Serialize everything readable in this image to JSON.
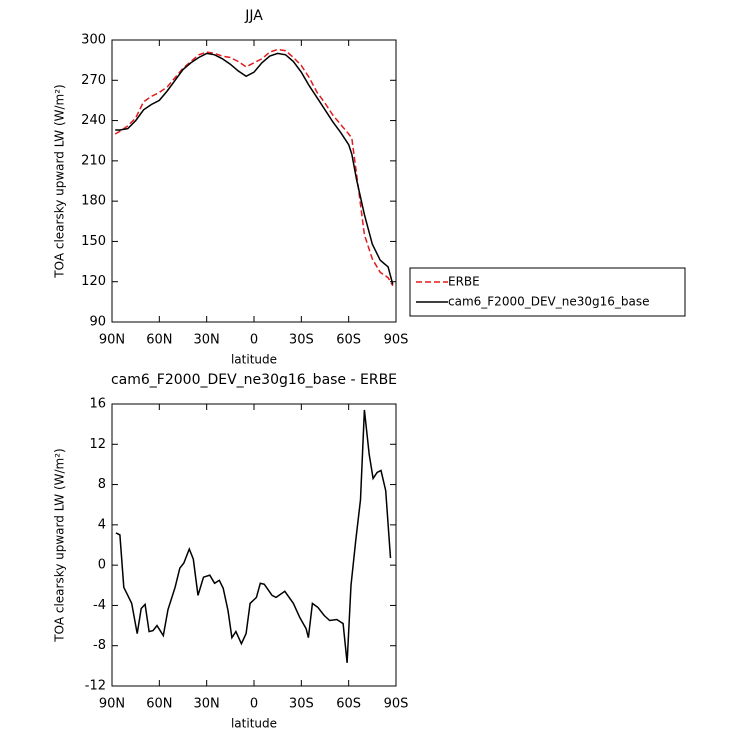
{
  "chart_data": [
    {
      "type": "line",
      "title": "JJA",
      "xlabel": "latitude",
      "ylabel": "TOA clearsky upward LW (W/m²)",
      "x": [
        88,
        85,
        80,
        75,
        70,
        65,
        60,
        55,
        50,
        45,
        40,
        35,
        30,
        25,
        20,
        15,
        10,
        5,
        0,
        -5,
        -10,
        -15,
        -20,
        -25,
        -30,
        -35,
        -40,
        -45,
        -50,
        -55,
        -60,
        -62,
        -65,
        -70,
        -75,
        -80,
        -85,
        -88
      ],
      "series": [
        {
          "name": "ERBE",
          "color": "#e41a1c",
          "dashed": true,
          "values": [
            230,
            232,
            236,
            242,
            254,
            258,
            261,
            265,
            272,
            279,
            284,
            289,
            291,
            290,
            288,
            287,
            284,
            280,
            283,
            286,
            291,
            293,
            292,
            287,
            281,
            272,
            261,
            253,
            244,
            237,
            230,
            227,
            200,
            155,
            137,
            127,
            123,
            117
          ]
        },
        {
          "name": "cam6_F2000_DEV_ne30g16_base",
          "color": "#000000",
          "dashed": false,
          "values": [
            233,
            233,
            234,
            240,
            248,
            252,
            255,
            262,
            270,
            278,
            283,
            287,
            290,
            289,
            286,
            282,
            277,
            273,
            276,
            283,
            288,
            290,
            289,
            284,
            276,
            266,
            257,
            248,
            239,
            231,
            222,
            215,
            196,
            170,
            148,
            136,
            131,
            118
          ]
        }
      ],
      "xlim": [
        90,
        -90
      ],
      "xticks": [
        {
          "value": 90,
          "label": "90N"
        },
        {
          "value": 60,
          "label": "60N"
        },
        {
          "value": 30,
          "label": "30N"
        },
        0,
        {
          "value": -30,
          "label": "30S"
        },
        {
          "value": -60,
          "label": "60S"
        },
        {
          "value": -90,
          "label": "90S"
        }
      ],
      "ylim": [
        90,
        300
      ],
      "yticks": [
        90,
        120,
        150,
        180,
        210,
        240,
        270,
        300
      ],
      "legend": "right"
    },
    {
      "type": "line",
      "title": "cam6_F2000_DEV_ne30g16_base - ERBE",
      "xlabel": "latitude",
      "ylabel": "TOA clearsky upward LW (W/m²)",
      "x": [
        87.5,
        85,
        82.5,
        77.5,
        74,
        71.5,
        69,
        66.5,
        64,
        61.5,
        57.5,
        54.5,
        50,
        47,
        44.5,
        41,
        38.5,
        35.5,
        32,
        28,
        25,
        22,
        19.5,
        16.5,
        14,
        11.5,
        8,
        5,
        2.5,
        -1.5,
        -4,
        -6.5,
        -11.5,
        -14,
        -19.5,
        -25,
        -29,
        -33,
        -34.5,
        -37,
        -40.5,
        -44.5,
        -48,
        -52.5,
        -56.5,
        -59,
        -61.5,
        -64.5,
        -67.5,
        -70,
        -73,
        -75.5,
        -78,
        -80.5,
        -83.5,
        -86.5
      ],
      "series": [
        {
          "name": "cam6_F2000_DEV_ne30g16_base - ERBE",
          "color": "#000000",
          "dashed": false,
          "values": [
            3.2,
            3.0,
            -2.2,
            -3.8,
            -6.8,
            -4.3,
            -3.9,
            -6.6,
            -6.5,
            -6.0,
            -7.0,
            -4.4,
            -2.2,
            -0.3,
            0.2,
            1.6,
            0.6,
            -3.0,
            -1.2,
            -1.0,
            -1.8,
            -1.5,
            -2.3,
            -4.5,
            -7.2,
            -6.6,
            -7.8,
            -6.8,
            -3.8,
            -3.2,
            -1.8,
            -1.9,
            -3.0,
            -3.2,
            -2.6,
            -3.8,
            -5.2,
            -6.3,
            -7.2,
            -3.8,
            -4.2,
            -5.0,
            -5.5,
            -5.4,
            -5.8,
            -9.7,
            -2.0,
            2.5,
            6.5,
            15.4,
            11.0,
            8.6,
            9.2,
            9.4,
            7.4,
            0.7
          ]
        }
      ],
      "xlim": [
        90,
        -90
      ],
      "xticks": [
        {
          "value": 90,
          "label": "90N"
        },
        {
          "value": 60,
          "label": "60N"
        },
        {
          "value": 30,
          "label": "30N"
        },
        0,
        {
          "value": -30,
          "label": "30S"
        },
        {
          "value": -60,
          "label": "60S"
        },
        {
          "value": -90,
          "label": "90S"
        }
      ],
      "ylim": [
        -12,
        16
      ],
      "yticks": [
        -12,
        -8,
        -4,
        0,
        4,
        8,
        12,
        16
      ]
    }
  ]
}
